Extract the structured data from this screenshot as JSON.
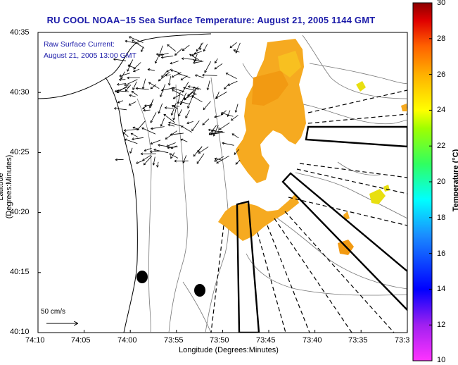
{
  "title": "RU COOL  NOAA−15  Sea Surface Temperature:  August 21, 2005 1144 GMT",
  "annotation": {
    "line1": "Raw Surface Current:",
    "line2": "August 21, 2005 13:00 GMT"
  },
  "axes": {
    "ylabel": "Latitude (Degrees:Minutes)",
    "xlabel": "Longitude (Degrees:Minutes)",
    "y_ticks": [
      "40:35",
      "40:30",
      "40:25",
      "40:20",
      "40:15",
      "40:10"
    ],
    "x_ticks": [
      "74:10",
      "74:05",
      "74:00",
      "73:55",
      "73:50",
      "73:45",
      "73:40",
      "73:35",
      "73:3"
    ]
  },
  "scale": {
    "label": "50 cm/s"
  },
  "colorbar": {
    "label": "Temperature (°C)",
    "ticks": [
      "30",
      "28",
      "26",
      "24",
      "22",
      "20",
      "18",
      "16",
      "14",
      "12",
      "10"
    ],
    "min": 10,
    "max": 30
  },
  "colors": {
    "title": "#1a1aa8",
    "sst_dark": "#f29a12",
    "sst_mid": "#f6aa20",
    "sst_light": "#f8c020",
    "sst_yellow": "#e8df10"
  }
}
